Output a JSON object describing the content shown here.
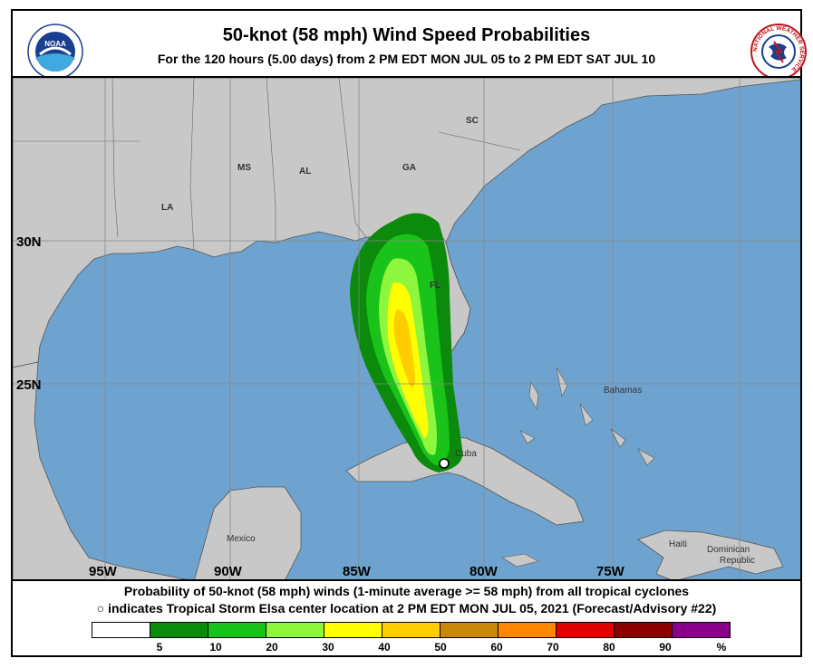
{
  "header": {
    "title": "50-knot (58 mph) Wind Speed Probabilities",
    "subtitle": "For the 120 hours (5.00 days) from 2 PM EDT MON JUL 05 to 2 PM EDT SAT JUL 10",
    "noaa_logo_text": "NOAA",
    "nws_logo_text": "NATIONAL WEATHER SERVICE"
  },
  "map": {
    "latitude_labels": [
      "30N",
      "25N"
    ],
    "longitude_labels": [
      "95W",
      "90W",
      "85W",
      "80W",
      "75W"
    ],
    "state_labels": [
      "SC",
      "MS",
      "AL",
      "GA",
      "LA",
      "FL"
    ],
    "place_labels": [
      "Bahamas",
      "Cuba",
      "Mexico",
      "Haiti",
      "Dominican",
      "Republic"
    ],
    "colors": {
      "ocean": "#6fa3cf",
      "land": "#c8c8c8",
      "grid": "#888888"
    },
    "storm_center_marker": "white-circle"
  },
  "footer": {
    "line1": "Probability of 50-knot (58 mph) winds (1-minute average >= 58 mph) from all tropical cyclones",
    "line2": "indicates Tropical Storm Elsa center location at 2 PM EDT MON JUL 05, 2021 (Forecast/Advisory #22)",
    "marker_glyph": "○"
  },
  "legend": {
    "colors": [
      "#ffffff",
      "#0b8a0b",
      "#19c319",
      "#8ef63c",
      "#ffff00",
      "#ffcc00",
      "#c8880a",
      "#ff8800",
      "#e00000",
      "#8b0000",
      "#8b008b"
    ],
    "labels": [
      "5",
      "10",
      "20",
      "30",
      "40",
      "50",
      "60",
      "70",
      "80",
      "90",
      "%"
    ]
  }
}
